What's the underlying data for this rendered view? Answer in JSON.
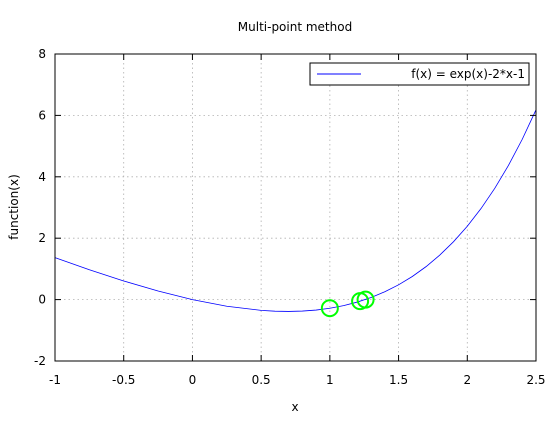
{
  "chart_data": {
    "type": "line",
    "title": "Multi-point method",
    "xlabel": "x",
    "ylabel": "function(x)",
    "xlim": [
      -1,
      2.5
    ],
    "ylim": [
      -2,
      8
    ],
    "xticks": [
      -1,
      -0.5,
      0,
      0.5,
      1,
      1.5,
      2,
      2.5
    ],
    "xtick_labels": [
      "-1",
      "-0.5",
      "0",
      "0.5",
      "1",
      "1.5",
      "2",
      "2.5"
    ],
    "yticks": [
      -2,
      0,
      2,
      4,
      6,
      8
    ],
    "ytick_labels": [
      "-2",
      "0",
      "2",
      "4",
      "6",
      "8"
    ],
    "grid": true,
    "legend_position": "top-right",
    "series": [
      {
        "name": "f(x) = exp(x)-2*x-1",
        "color": "#0000ff",
        "x": [
          -1.0,
          -0.75,
          -0.5,
          -0.25,
          0.0,
          0.25,
          0.5,
          0.6,
          0.7,
          0.8,
          0.9,
          1.0,
          1.1,
          1.2,
          1.3,
          1.4,
          1.5,
          1.6,
          1.7,
          1.8,
          1.9,
          2.0,
          2.1,
          2.2,
          2.3,
          2.4,
          2.5
        ],
        "y": [
          1.368,
          0.972,
          0.607,
          0.279,
          0.0,
          -0.216,
          -0.351,
          -0.378,
          -0.386,
          -0.374,
          -0.34,
          -0.282,
          -0.196,
          -0.08,
          0.069,
          0.255,
          0.482,
          0.753,
          1.074,
          1.45,
          1.886,
          2.389,
          2.966,
          3.625,
          4.374,
          5.223,
          6.182
        ]
      }
    ],
    "markers": {
      "color": "#00ff00",
      "shape": "circle",
      "points": [
        {
          "x": 1.0,
          "y": -0.28
        },
        {
          "x": 1.22,
          "y": -0.05
        },
        {
          "x": 1.26,
          "y": 0.0
        }
      ]
    }
  }
}
